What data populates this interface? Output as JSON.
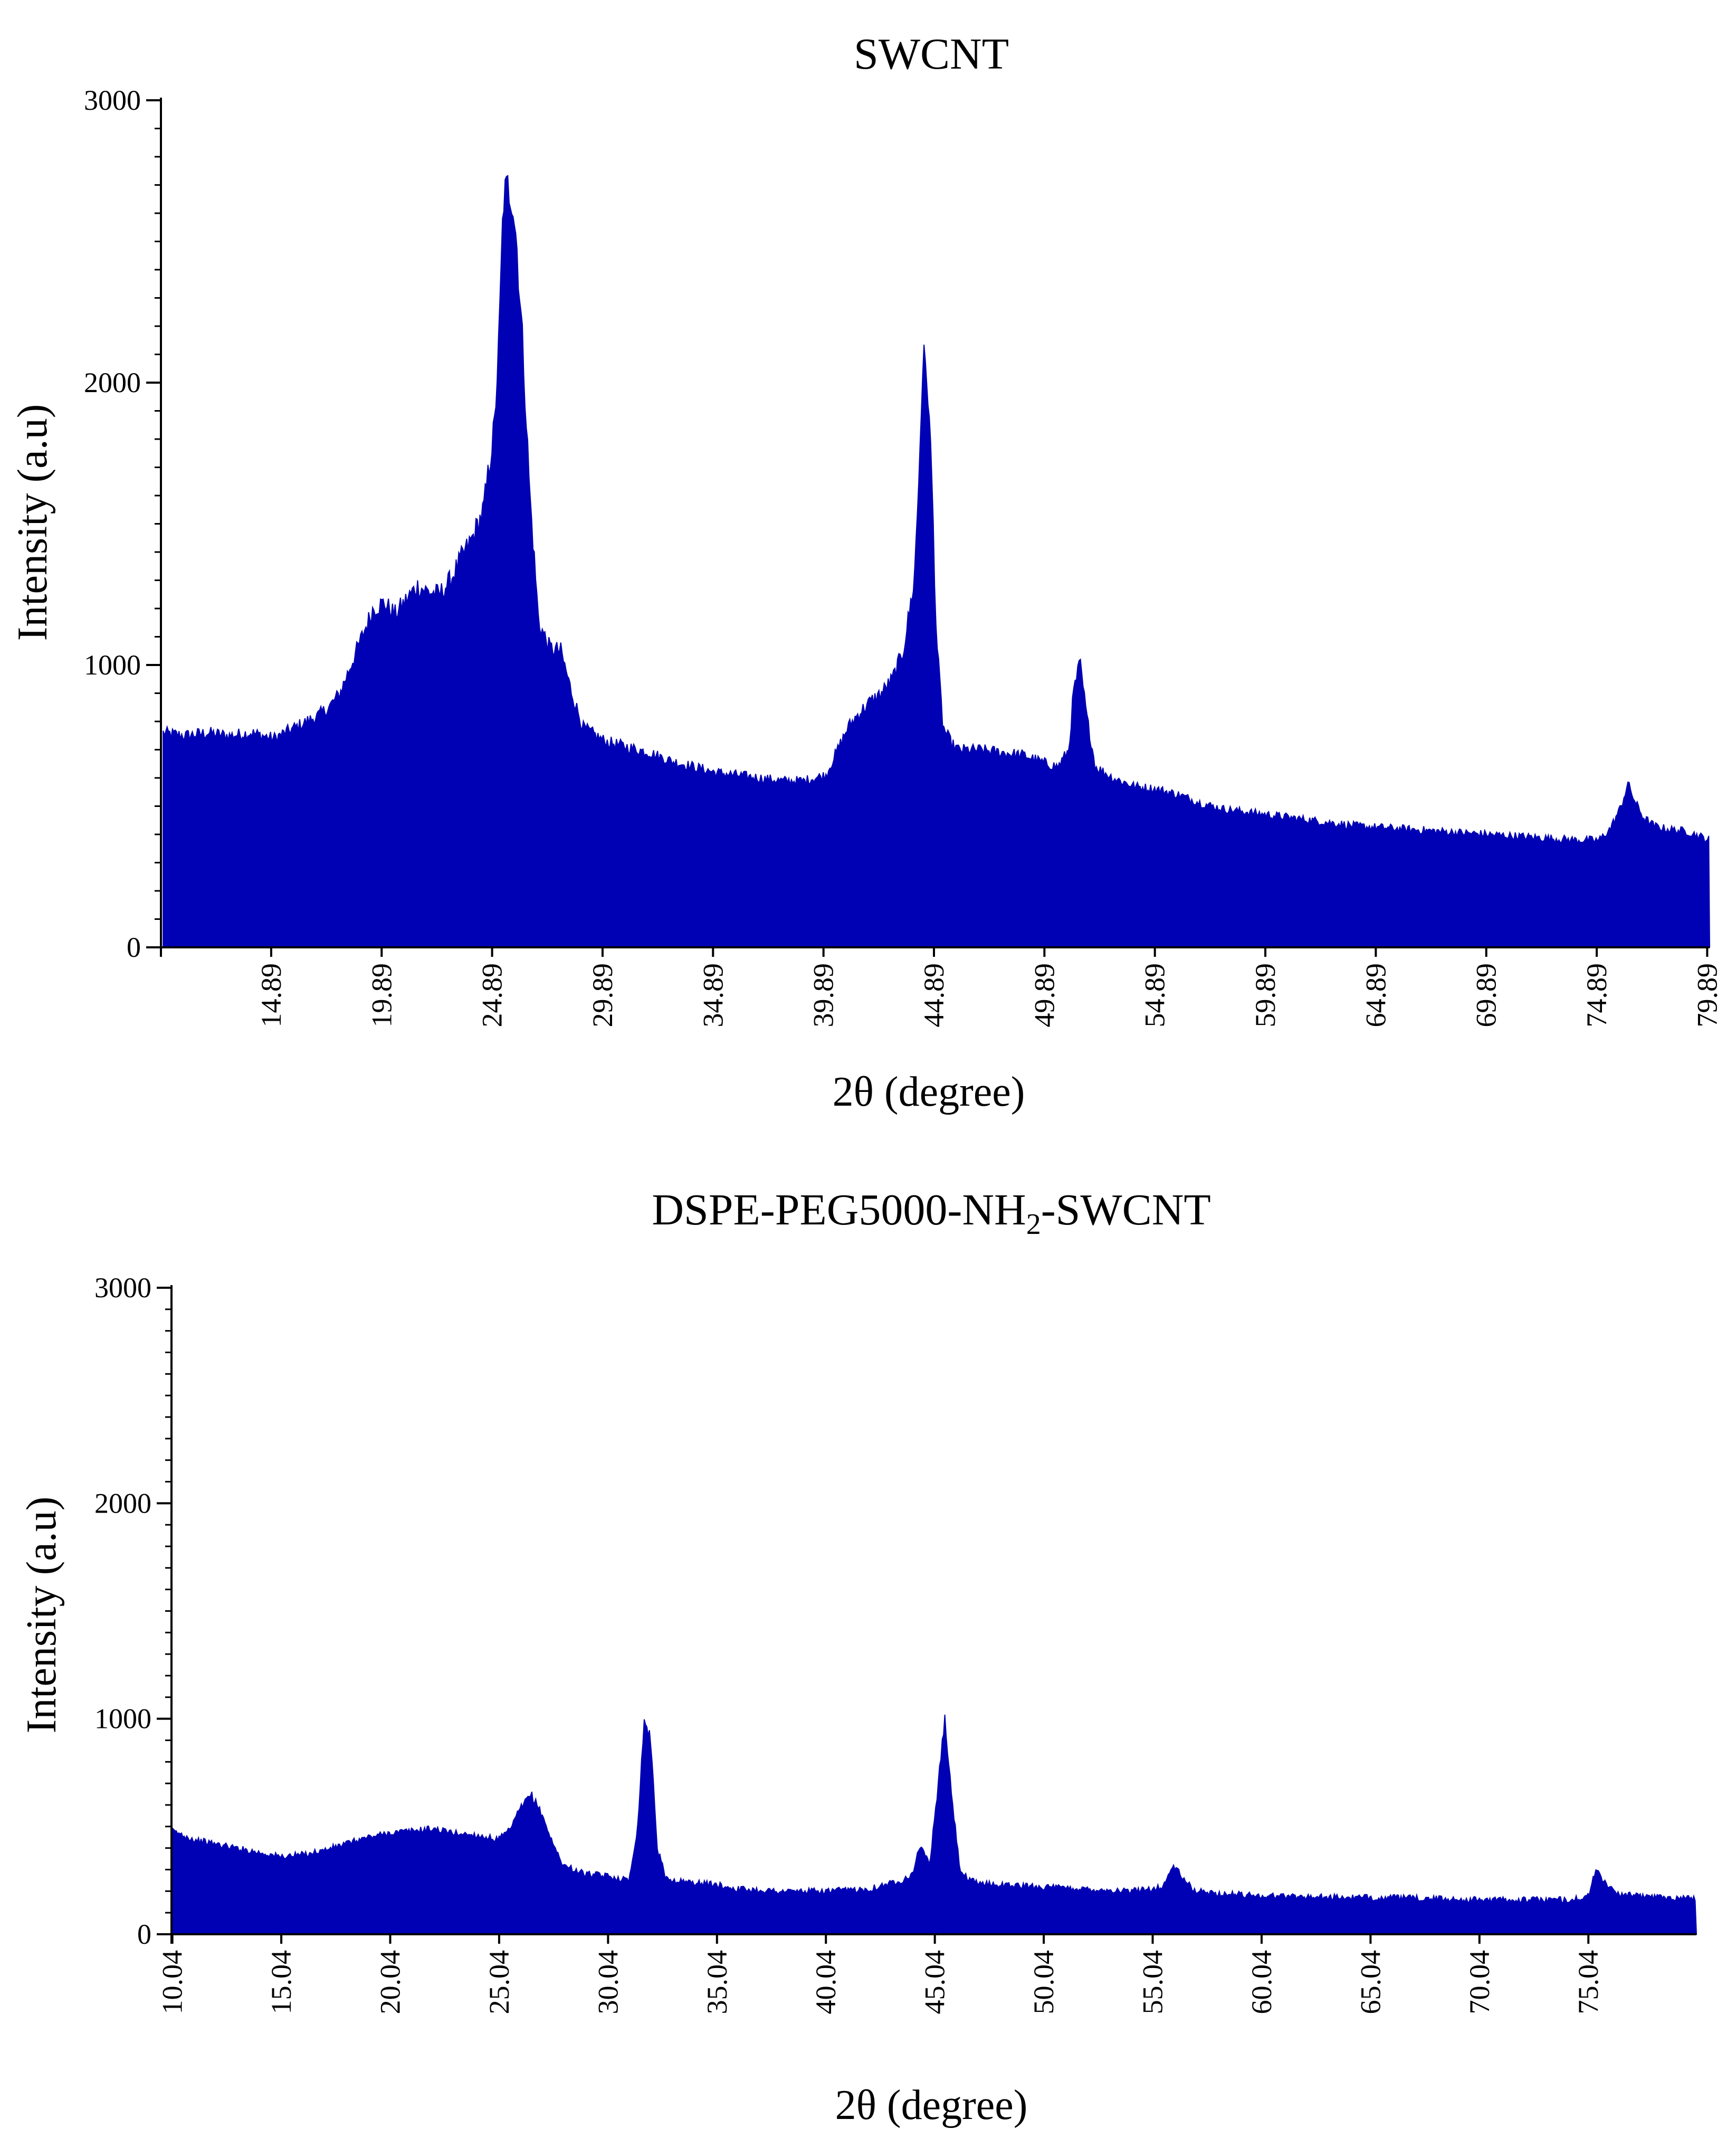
{
  "colors": {
    "fill": "#0000b4",
    "axis": "#000000",
    "background": "#ffffff"
  },
  "chart_data": [
    {
      "type": "area",
      "title": "SWCNT",
      "xlabel": "2θ (degree)",
      "ylabel": "Intensity (a.u)",
      "xlim": [
        9.9,
        80.0
      ],
      "ylim": [
        0,
        3000
      ],
      "yticks": [
        0,
        1000,
        2000,
        3000
      ],
      "xticks": [
        14.89,
        19.89,
        24.89,
        29.89,
        34.89,
        39.89,
        44.89,
        49.89,
        54.89,
        59.89,
        64.89,
        69.89,
        74.89,
        79.89
      ],
      "xtick_labels": [
        "14.89",
        "19.89",
        "24.89",
        "29.89",
        "34.89",
        "39.89",
        "44.89",
        "49.89",
        "54.89",
        "59.89",
        "64.89",
        "69.89",
        "74.89",
        "79.89"
      ],
      "ytick_labels": [
        "0",
        "1000",
        "2000",
        "3000"
      ],
      "grid": false,
      "series": [
        {
          "x": [
            10,
            11,
            12,
            13,
            14,
            15,
            16,
            17,
            17.5,
            18,
            18.5,
            19,
            19.5,
            20,
            20.5,
            21,
            21.5,
            22,
            22.5,
            23,
            23.5,
            24,
            24.5,
            25,
            25.2,
            25.4,
            25.6,
            25.8,
            26,
            26.3,
            26.6,
            27,
            27.5,
            28,
            28.5,
            29,
            30,
            31,
            32,
            33,
            34,
            35,
            36,
            37,
            38,
            39,
            40,
            41,
            41.5,
            42,
            42.5,
            43,
            43.5,
            44,
            44.2,
            44.4,
            44.6,
            44.8,
            45,
            45.3,
            45.7,
            46,
            47,
            48,
            49,
            50,
            50.5,
            51,
            51.2,
            51.5,
            51.8,
            52.2,
            53,
            54,
            55,
            56,
            57,
            58,
            60,
            62,
            64,
            66,
            68,
            70,
            72,
            74,
            75,
            75.5,
            76,
            76.3,
            76.6,
            77,
            77.5,
            78,
            79,
            80
          ],
          "y": [
            760,
            750,
            760,
            750,
            760,
            740,
            780,
            820,
            850,
            900,
            1000,
            1100,
            1200,
            1220,
            1180,
            1230,
            1280,
            1260,
            1250,
            1300,
            1380,
            1450,
            1550,
            1850,
            2150,
            2650,
            2690,
            2660,
            2500,
            2100,
            1600,
            1150,
            1060,
            1050,
            900,
            780,
            730,
            710,
            690,
            660,
            640,
            620,
            610,
            600,
            590,
            590,
            610,
            780,
            830,
            870,
            900,
            950,
            1050,
            1300,
            1650,
            2100,
            2000,
            1650,
            1100,
            780,
            720,
            700,
            700,
            690,
            680,
            650,
            640,
            700,
            900,
            1010,
            820,
            640,
            600,
            570,
            560,
            540,
            510,
            490,
            470,
            450,
            430,
            420,
            410,
            400,
            390,
            380,
            380,
            420,
            500,
            580,
            520,
            460,
            430,
            420,
            410,
            380
          ]
        }
      ]
    },
    {
      "type": "area",
      "title": "DSPE-PEG5000-NH2-SWCNT",
      "title_parts": {
        "pre": "DSPE-PEG5000-NH",
        "sub": "2",
        "post": "-SWCNT"
      },
      "xlabel": "2θ (degree)",
      "ylabel": "Intensity (a.u)",
      "xlim": [
        10.0,
        80.0
      ],
      "ylim": [
        0,
        3000
      ],
      "yticks": [
        0,
        1000,
        2000,
        3000
      ],
      "xticks": [
        10.04,
        15.04,
        20.04,
        25.04,
        30.04,
        35.04,
        40.04,
        45.04,
        50.04,
        55.04,
        60.04,
        65.04,
        70.04,
        75.04
      ],
      "xtick_labels": [
        "10.04",
        "15.04",
        "20.04",
        "25.04",
        "30.04",
        "35.04",
        "40.04",
        "45.04",
        "50.04",
        "55.04",
        "60.04",
        "65.04",
        "70.04",
        "75.04"
      ],
      "ytick_labels": [
        "0",
        "1000",
        "2000",
        "3000"
      ],
      "grid": false,
      "series": [
        {
          "x": [
            10.04,
            11,
            12,
            13,
            14,
            15,
            16,
            17,
            18,
            19,
            20,
            21,
            22,
            23,
            24,
            25,
            25.5,
            26,
            26.5,
            27,
            27.5,
            28,
            29,
            30,
            31,
            31.4,
            31.7,
            32,
            32.3,
            32.7,
            33,
            34,
            35,
            36,
            38,
            40,
            42,
            43.5,
            44,
            44.4,
            44.8,
            45.2,
            45.5,
            45.8,
            46.2,
            46.6,
            47,
            48,
            50,
            52,
            54,
            55.5,
            56,
            56.5,
            57,
            58,
            60,
            62,
            64,
            66,
            68,
            70,
            72,
            74,
            75,
            75.4,
            75.8,
            76.3,
            77,
            78,
            79,
            80
          ],
          "y": [
            480,
            440,
            420,
            400,
            380,
            360,
            370,
            390,
            420,
            450,
            470,
            480,
            490,
            470,
            460,
            440,
            480,
            580,
            650,
            560,
            420,
            320,
            280,
            270,
            250,
            500,
            1000,
            900,
            400,
            260,
            250,
            240,
            230,
            210,
            200,
            200,
            210,
            250,
            280,
            420,
            320,
            700,
            1000,
            650,
            300,
            250,
            240,
            230,
            220,
            210,
            200,
            220,
            320,
            250,
            200,
            190,
            180,
            175,
            170,
            170,
            165,
            160,
            160,
            160,
            170,
            300,
            240,
            190,
            180,
            175,
            170,
            170
          ]
        }
      ]
    }
  ]
}
